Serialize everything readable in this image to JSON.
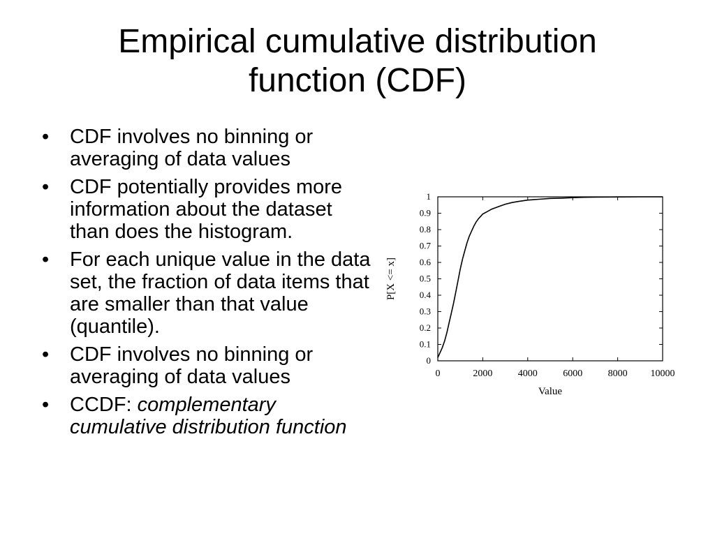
{
  "slide": {
    "title_line1": "Empirical cumulative distribution",
    "title_line2": "function (CDF)",
    "bullet_char": "•",
    "bullets": [
      {
        "text": "CDF involves no binning or averaging of data values"
      },
      {
        "text": "CDF potentially provides more information about the dataset than does the histogram."
      },
      {
        "text": "For each unique value in the data set, the fraction of data items that are smaller than that value (quantile)."
      },
      {
        "text": "CDF involves no binning or averaging of data values"
      },
      {
        "prefix": "CCDF: ",
        "italic": "complementary cumulative distribution function"
      }
    ]
  },
  "chart_data": {
    "type": "line",
    "title": "",
    "xlabel": "Value",
    "ylabel": "P[X <= x]",
    "xlim": [
      0,
      10000
    ],
    "ylim": [
      0,
      1
    ],
    "xticks": [
      0,
      2000,
      4000,
      6000,
      8000,
      10000
    ],
    "yticks": [
      0,
      0.1,
      0.2,
      0.3,
      0.4,
      0.5,
      0.6,
      0.7,
      0.8,
      0.9,
      1
    ],
    "ytick_labels": [
      "0",
      "0.1",
      "0.2",
      "0.3",
      "0.4",
      "0.5",
      "0.6",
      "0.7",
      "0.8",
      "0.9",
      "1"
    ],
    "grid": false,
    "legend": "none",
    "series": [
      {
        "x": [
          0,
          100,
          200,
          300,
          400,
          500,
          600,
          700,
          800,
          900,
          1000,
          1100,
          1200,
          1300,
          1400,
          1500,
          1600,
          1700,
          1800,
          1900,
          2000,
          2200,
          2400,
          2600,
          2800,
          3000,
          3300,
          3600,
          4000,
          4500,
          5000,
          5500,
          6000,
          6500,
          7000,
          8000,
          9000,
          10000
        ],
        "y": [
          0.02,
          0.05,
          0.08,
          0.12,
          0.17,
          0.23,
          0.29,
          0.35,
          0.42,
          0.49,
          0.56,
          0.62,
          0.67,
          0.72,
          0.76,
          0.79,
          0.82,
          0.845,
          0.865,
          0.88,
          0.895,
          0.91,
          0.925,
          0.935,
          0.945,
          0.955,
          0.965,
          0.972,
          0.98,
          0.985,
          0.99,
          0.992,
          0.995,
          0.997,
          0.998,
          0.999,
          1.0,
          1.0
        ]
      }
    ]
  }
}
